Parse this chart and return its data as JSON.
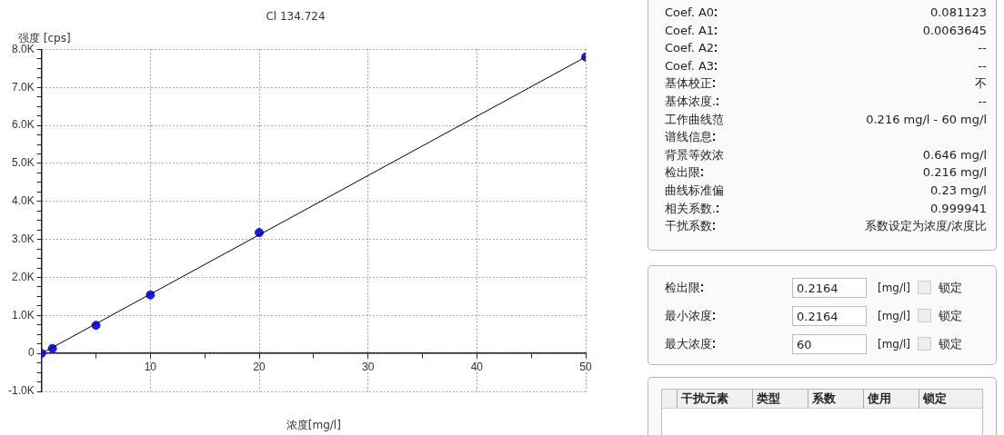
{
  "chart_data": [
    {
      "type": "scatter",
      "title": "Cl 134.724",
      "xlabel": "浓度[mg/l]",
      "ylabel": "强度 [cps]",
      "grid": true,
      "legend": false,
      "xlim": [
        0,
        50
      ],
      "xticks": [
        {
          "value": 0,
          "label": null
        },
        {
          "value": 5,
          "label": null
        },
        10,
        {
          "value": 15,
          "label": null
        },
        20,
        {
          "value": 25,
          "label": null
        },
        30,
        {
          "value": 35,
          "label": null
        },
        40,
        {
          "value": 45,
          "label": null
        },
        50
      ],
      "ylim": [
        -1000,
        8000
      ],
      "yticks": [
        {
          "value": -1000,
          "label": "-1.0K"
        },
        {
          "value": -750,
          "label": null
        },
        {
          "value": -500,
          "label": null
        },
        {
          "value": -250,
          "label": null
        },
        0,
        {
          "value": 250,
          "label": null
        },
        {
          "value": 500,
          "label": null
        },
        {
          "value": 750,
          "label": null
        },
        {
          "value": 1000,
          "label": "1.0K"
        },
        {
          "value": 1250,
          "label": null
        },
        {
          "value": 1500,
          "label": null
        },
        {
          "value": 1750,
          "label": null
        },
        {
          "value": 2000,
          "label": "2.0K"
        },
        {
          "value": 2250,
          "label": null
        },
        {
          "value": 2500,
          "label": null
        },
        {
          "value": 2750,
          "label": null
        },
        {
          "value": 3000,
          "label": "3.0K"
        },
        {
          "value": 3250,
          "label": null
        },
        {
          "value": 3500,
          "label": null
        },
        {
          "value": 3750,
          "label": null
        },
        {
          "value": 4000,
          "label": "4.0K"
        },
        {
          "value": 4250,
          "label": null
        },
        {
          "value": 4500,
          "label": null
        },
        {
          "value": 4750,
          "label": null
        },
        {
          "value": 5000,
          "label": "5.0K"
        },
        {
          "value": 5250,
          "label": null
        },
        {
          "value": 5500,
          "label": null
        },
        {
          "value": 5750,
          "label": null
        },
        {
          "value": 6000,
          "label": "6.0K"
        },
        {
          "value": 6250,
          "label": null
        },
        {
          "value": 6500,
          "label": null
        },
        {
          "value": 6750,
          "label": null
        },
        {
          "value": 7000,
          "label": "7.0K"
        },
        {
          "value": 7250,
          "label": null
        },
        {
          "value": 7500,
          "label": null
        },
        {
          "value": 7750,
          "label": null
        },
        {
          "value": 8000,
          "label": "8.0K"
        }
      ],
      "series": [
        {
          "type": "line",
          "color": "#000000",
          "x": [
            0,
            50
          ],
          "values": [
            0,
            7800
          ],
          "marker": "none",
          "line_style": "solid"
        },
        {
          "type": "scatter",
          "color": "#1a1aee",
          "x": [
            0,
            1,
            5,
            10,
            20,
            50
          ],
          "values": [
            0,
            130,
            740,
            1540,
            3180,
            7800
          ],
          "marker": "circle"
        }
      ]
    },
    {
      "type": "other",
      "categories": [
        "Coef. A0",
        "Coef. A1",
        "Coef. A2",
        "Coef. A3",
        "基体校正",
        "基体浓度.",
        "工作曲线范",
        "谱线信息",
        "背景等效浓",
        "检出限",
        "曲线标准偏",
        "相关系数.",
        "干扰系数"
      ],
      "value_labels": [
        "0.081123",
        "0.0063645",
        "--",
        "--",
        "不",
        "--",
        "0.216 mg/l - 60 mg/l",
        null,
        "0.646 mg/l",
        "0.216 mg/l",
        "0.23 mg/l",
        "0.999941",
        "系数设定为浓度/浓度比"
      ]
    },
    {
      "type": "other",
      "categories": [
        "检出限",
        "最小浓度",
        "最大浓度"
      ],
      "value_labels": [
        "0.2164",
        "0.2164",
        "60"
      ],
      "annotations": [
        "[mg/l]",
        "锁定",
        "[mg/l]",
        "锁定",
        "[mg/l]",
        "锁定"
      ]
    },
    {
      "type": "other",
      "categories": [
        "干扰元素",
        "类型",
        "系数",
        "使用",
        "锁定"
      ]
    }
  ]
}
